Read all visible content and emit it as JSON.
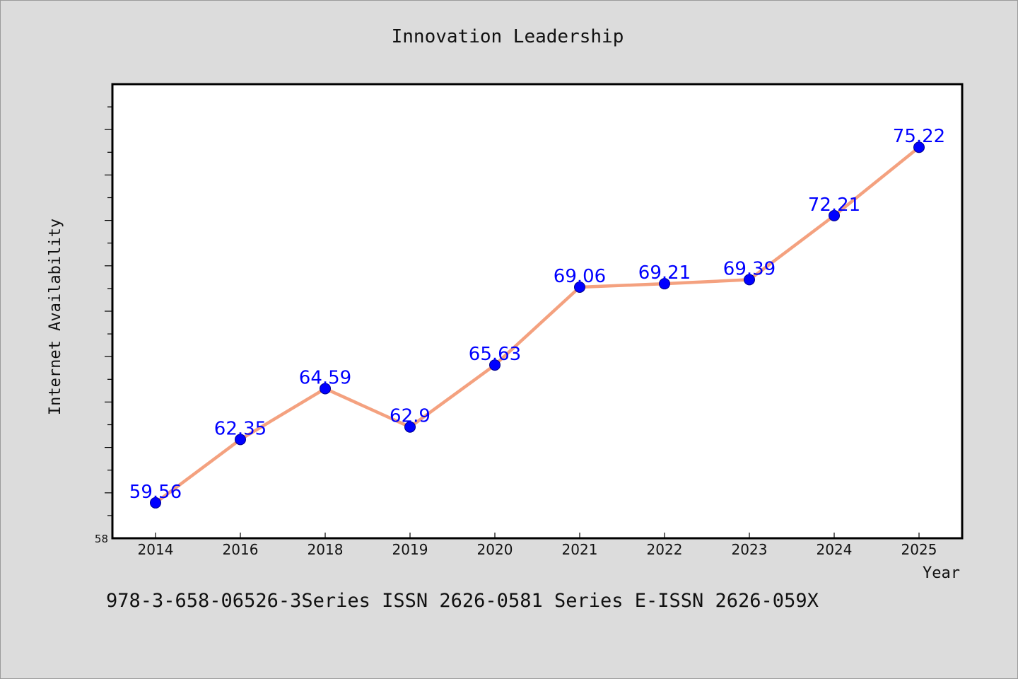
{
  "chart_data": {
    "type": "line",
    "title": "Innovation Leadership",
    "xlabel": "Year",
    "ylabel": "Internet Availability",
    "categories": [
      "2014",
      "2016",
      "2018",
      "2019",
      "2020",
      "2021",
      "2022",
      "2023",
      "2024",
      "2025"
    ],
    "series": [
      {
        "values": [
          59.56,
          62.35,
          64.59,
          62.9,
          65.63,
          69.06,
          69.21,
          69.39,
          72.21,
          75.22
        ],
        "data_labels": [
          "59.56",
          "62.35",
          "64.59",
          "62.9",
          "65.63",
          "69.06",
          "69.21",
          "69.39",
          "72.21",
          "75.22"
        ]
      }
    ],
    "ylim": [
      58,
      78
    ],
    "y_tick_labels": [
      "58"
    ],
    "grid": false,
    "legend": "none",
    "colors": {
      "line": "#f4a17f",
      "marker": "#0000ff",
      "label": "#0000ff",
      "plot_bg": "#ffffff",
      "page_bg": "#dcdcdc"
    }
  },
  "footer": {
    "text": "978-3-658-06526-3Series ISSN 2626-0581 Series E-ISSN 2626-059X"
  }
}
